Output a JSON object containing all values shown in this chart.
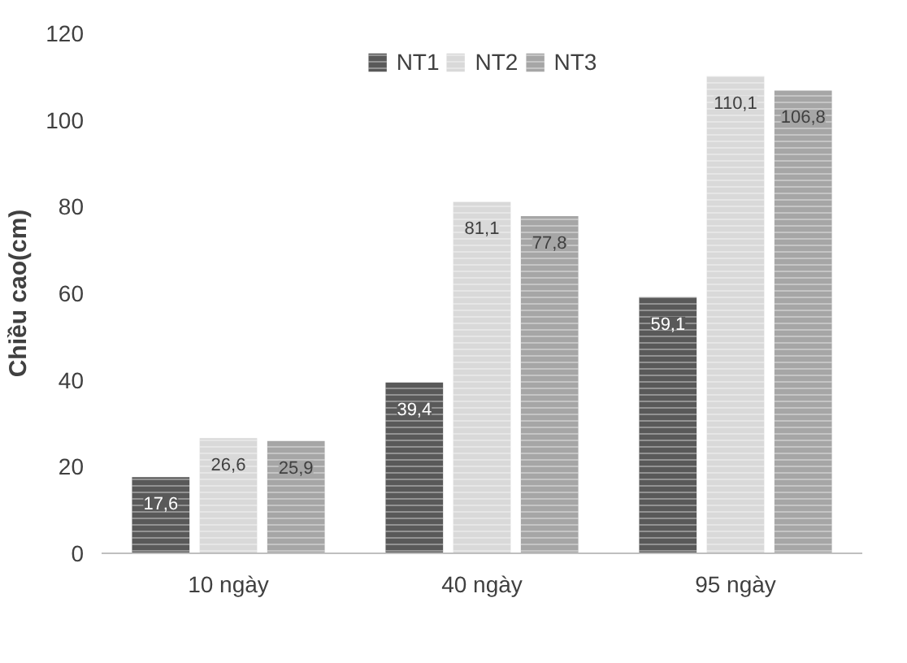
{
  "chart_data": {
    "type": "bar",
    "ylabel": "Chiều cao(cm)",
    "categories": [
      "10 ngày",
      "40 ngày",
      "95 ngày"
    ],
    "series": [
      {
        "name": "NT1",
        "color": "#595959",
        "values": [
          17.6,
          39.4,
          59.1
        ],
        "value_labels": [
          "17,6",
          "39,4",
          "59,1"
        ]
      },
      {
        "name": "NT2",
        "color": "#d9d9d9",
        "values": [
          26.6,
          81.1,
          110.1
        ],
        "value_labels": [
          "26,6",
          "81,1",
          "110,1"
        ]
      },
      {
        "name": "NT3",
        "color": "#a6a6a6",
        "values": [
          25.9,
          77.8,
          106.8
        ],
        "value_labels": [
          "25,9",
          "77,8",
          "106,8"
        ]
      }
    ],
    "ylim": [
      0,
      120
    ],
    "yticks": [
      0,
      20,
      40,
      60,
      80,
      100,
      120
    ],
    "grid": false,
    "legend": "top"
  }
}
